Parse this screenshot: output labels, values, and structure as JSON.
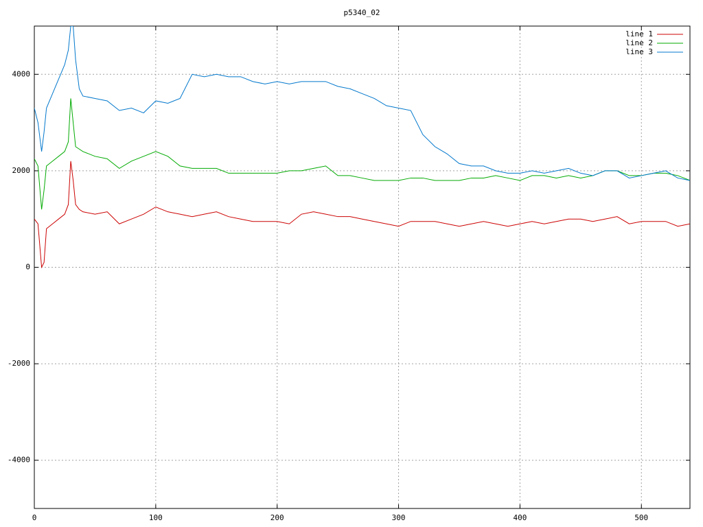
{
  "chart_data": {
    "type": "line",
    "title": "p5340_02",
    "x": [
      0,
      3,
      6,
      8,
      10,
      15,
      20,
      25,
      28,
      30,
      32,
      34,
      37,
      40,
      50,
      60,
      70,
      80,
      90,
      100,
      110,
      120,
      130,
      140,
      150,
      160,
      170,
      180,
      190,
      200,
      210,
      220,
      230,
      240,
      250,
      260,
      270,
      280,
      290,
      300,
      310,
      320,
      330,
      340,
      350,
      360,
      370,
      380,
      390,
      400,
      410,
      420,
      430,
      440,
      450,
      460,
      470,
      480,
      490,
      500,
      510,
      520,
      530,
      540
    ],
    "series": [
      {
        "name": "line 1",
        "color": "#cc0000",
        "values": [
          1000,
          900,
          0,
          100,
          800,
          900,
          1000,
          1100,
          1300,
          2200,
          1800,
          1300,
          1200,
          1150,
          1100,
          1150,
          900,
          1000,
          1100,
          1250,
          1150,
          1100,
          1050,
          1100,
          1150,
          1050,
          1000,
          950,
          950,
          950,
          900,
          1100,
          1150,
          1100,
          1050,
          1050,
          1000,
          950,
          900,
          850,
          950,
          950,
          950,
          900,
          850,
          900,
          950,
          900,
          850,
          900,
          950,
          900,
          950,
          1000,
          1000,
          950,
          1000,
          1050,
          900,
          950,
          950,
          950,
          850,
          900
        ]
      },
      {
        "name": "line 2",
        "color": "#00aa00",
        "values": [
          2250,
          2100,
          1200,
          1600,
          2100,
          2200,
          2300,
          2400,
          2600,
          3500,
          3000,
          2500,
          2450,
          2400,
          2300,
          2250,
          2050,
          2200,
          2300,
          2400,
          2300,
          2100,
          2050,
          2050,
          2050,
          1950,
          1950,
          1950,
          1950,
          1950,
          2000,
          2000,
          2050,
          2100,
          1900,
          1900,
          1850,
          1800,
          1800,
          1800,
          1850,
          1850,
          1800,
          1800,
          1800,
          1850,
          1850,
          1900,
          1850,
          1800,
          1900,
          1900,
          1850,
          1900,
          1850,
          1900,
          2000,
          2000,
          1900,
          1900,
          1950,
          1950,
          1900,
          1800
        ]
      },
      {
        "name": "line 3",
        "color": "#0077cc",
        "values": [
          3300,
          3000,
          2400,
          2800,
          3300,
          3600,
          3900,
          4200,
          4500,
          5000,
          5000,
          4300,
          3700,
          3550,
          3500,
          3450,
          3250,
          3300,
          3200,
          3450,
          3400,
          3500,
          4000,
          3950,
          4000,
          3950,
          3950,
          3850,
          3800,
          3850,
          3800,
          3850,
          3850,
          3850,
          3750,
          3700,
          3600,
          3500,
          3350,
          3300,
          3250,
          2750,
          2500,
          2350,
          2150,
          2100,
          2100,
          2000,
          1950,
          1950,
          2000,
          1950,
          2000,
          2050,
          1950,
          1900,
          2000,
          2000,
          1850,
          1900,
          1950,
          2000,
          1850,
          1800
        ]
      }
    ],
    "xlim": [
      0,
      540
    ],
    "ylim": [
      -5000,
      5000
    ],
    "xticks": [
      0,
      100,
      200,
      300,
      400,
      500
    ],
    "yticks": [
      -4000,
      -2000,
      0,
      2000,
      4000
    ],
    "grid": true,
    "legend": "top-right"
  }
}
